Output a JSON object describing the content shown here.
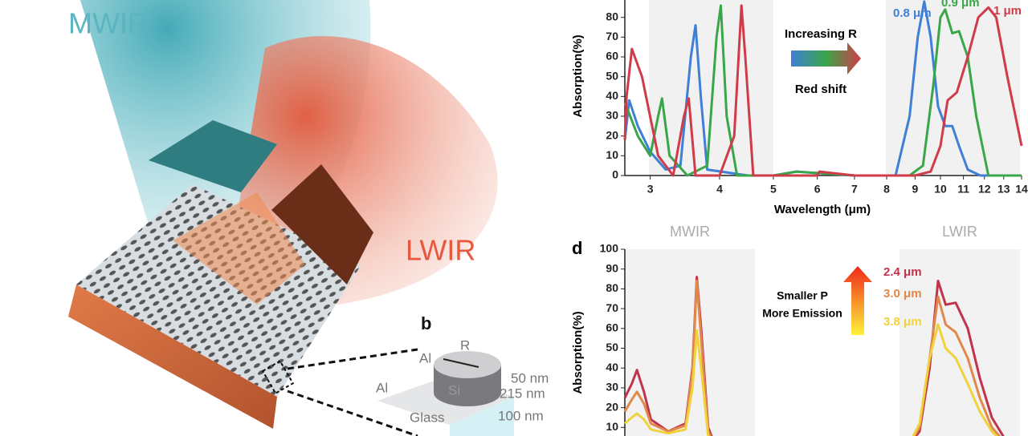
{
  "illustration": {
    "beam_left": "MWIR",
    "beam_right": "LWIR",
    "panel_label": "b",
    "inset_labels": [
      "Al",
      "R",
      "Al",
      "Si",
      "50 nm",
      "215 nm",
      "100 nm",
      "Glass"
    ]
  },
  "chart_data": [
    {
      "type": "line",
      "y_label": "Absorption(%)",
      "x_label": "Wavelength (μm)",
      "x_scale": "log",
      "xlim": [
        2.7,
        14
      ],
      "xticks": [
        3,
        4,
        5,
        6,
        7,
        8,
        9,
        10,
        11,
        12,
        13,
        14
      ],
      "ylim": [
        0,
        90
      ],
      "yticks": [
        0,
        10,
        20,
        30,
        40,
        50,
        60,
        70,
        80
      ],
      "annotations": [
        "Increasing R",
        "Red shift"
      ],
      "series": [
        {
          "name": "0.8 μm",
          "color": "#3f7fd6",
          "x": [
            2.7,
            2.75,
            2.85,
            3.0,
            3.2,
            3.4,
            3.55,
            3.62,
            3.7,
            3.8,
            4.5,
            5.0,
            5.5,
            7,
            8.3,
            8.8,
            9.1,
            9.35,
            9.6,
            9.9,
            10.2,
            10.5,
            10.8,
            11.2,
            11.8,
            14
          ],
          "values": [
            18,
            38,
            25,
            12,
            3,
            5,
            60,
            76,
            40,
            3,
            0,
            0,
            2,
            0,
            0,
            30,
            70,
            88,
            70,
            35,
            25,
            25,
            15,
            3,
            0,
            0
          ]
        },
        {
          "name": "0.9 μm",
          "color": "#3aa64a",
          "x": [
            2.7,
            2.85,
            3.0,
            3.1,
            3.15,
            3.25,
            3.5,
            3.8,
            3.95,
            4.02,
            4.12,
            4.3,
            5,
            5.5,
            7,
            8.8,
            9.3,
            9.7,
            10.0,
            10.2,
            10.5,
            10.8,
            11.2,
            11.6,
            12.2,
            14
          ],
          "values": [
            37,
            20,
            10,
            30,
            39,
            10,
            0,
            5,
            70,
            86,
            30,
            0,
            0,
            2,
            0,
            0,
            5,
            45,
            80,
            84,
            72,
            73,
            60,
            30,
            0,
            0
          ]
        },
        {
          "name": "1 μm",
          "color": "#d03b4a",
          "x": [
            2.7,
            2.72,
            2.78,
            2.9,
            3.1,
            3.3,
            3.45,
            3.52,
            3.62,
            4.0,
            4.25,
            4.38,
            4.45,
            4.6,
            5,
            6,
            6.05,
            7,
            9,
            9.6,
            10.0,
            10.3,
            10.7,
            11.2,
            11.7,
            12.2,
            12.6,
            13.2,
            14
          ],
          "values": [
            18,
            40,
            64,
            50,
            10,
            0,
            30,
            39,
            0,
            0,
            20,
            86,
            60,
            0,
            0,
            0,
            2,
            0,
            0,
            2,
            15,
            38,
            42,
            60,
            80,
            85,
            80,
            50,
            15
          ]
        }
      ]
    },
    {
      "type": "line",
      "panel_label": "d",
      "y_label": "Absorption(%)",
      "panels": [
        {
          "title": "MWIR",
          "xlim": [
            3,
            4.5
          ]
        },
        {
          "title": "LWIR",
          "xlim": [
            9,
            12
          ]
        }
      ],
      "ylim": [
        0,
        100
      ],
      "yticks": [
        10,
        20,
        30,
        40,
        50,
        60,
        70,
        80,
        90,
        100
      ],
      "annotations": [
        "Smaller P",
        "More Emission"
      ],
      "series": [
        {
          "name": "2.4 μm",
          "color": "#c0334a",
          "x": [
            3.0,
            3.08,
            3.14,
            3.22,
            3.3,
            3.5,
            3.7,
            3.78,
            3.83,
            3.88,
            3.96,
            4.05,
            null,
            9.2,
            9.5,
            9.75,
            9.96,
            10.15,
            10.4,
            10.7,
            11.0,
            11.3,
            11.6
          ],
          "values": [
            25,
            32,
            39,
            28,
            14,
            8,
            12,
            40,
            86,
            60,
            10,
            0,
            null,
            0,
            8,
            40,
            84,
            72,
            73,
            60,
            35,
            15,
            5
          ]
        },
        {
          "name": "3.0 μm",
          "color": "#e0894a",
          "x": [
            3.0,
            3.08,
            3.14,
            3.22,
            3.3,
            3.5,
            3.7,
            3.78,
            3.83,
            3.88,
            3.96,
            4.05,
            null,
            9.2,
            9.5,
            9.75,
            9.96,
            10.15,
            10.4,
            10.7,
            11.0,
            11.3,
            11.6
          ],
          "values": [
            18,
            24,
            28,
            22,
            12,
            8,
            11,
            38,
            84,
            55,
            8,
            0,
            null,
            0,
            10,
            45,
            76,
            62,
            58,
            45,
            25,
            10,
            3
          ]
        },
        {
          "name": "3.8 μm",
          "color": "#f0d23c",
          "x": [
            3.0,
            3.08,
            3.14,
            3.22,
            3.3,
            3.5,
            3.7,
            3.78,
            3.83,
            3.88,
            3.96,
            4.05,
            null,
            9.2,
            9.5,
            9.75,
            9.96,
            10.15,
            10.4,
            10.7,
            11.0,
            11.3,
            11.6
          ],
          "values": [
            12,
            15,
            17,
            14,
            9,
            7,
            9,
            30,
            59,
            40,
            6,
            0,
            null,
            0,
            12,
            45,
            62,
            50,
            45,
            32,
            18,
            8,
            2
          ]
        }
      ]
    }
  ]
}
